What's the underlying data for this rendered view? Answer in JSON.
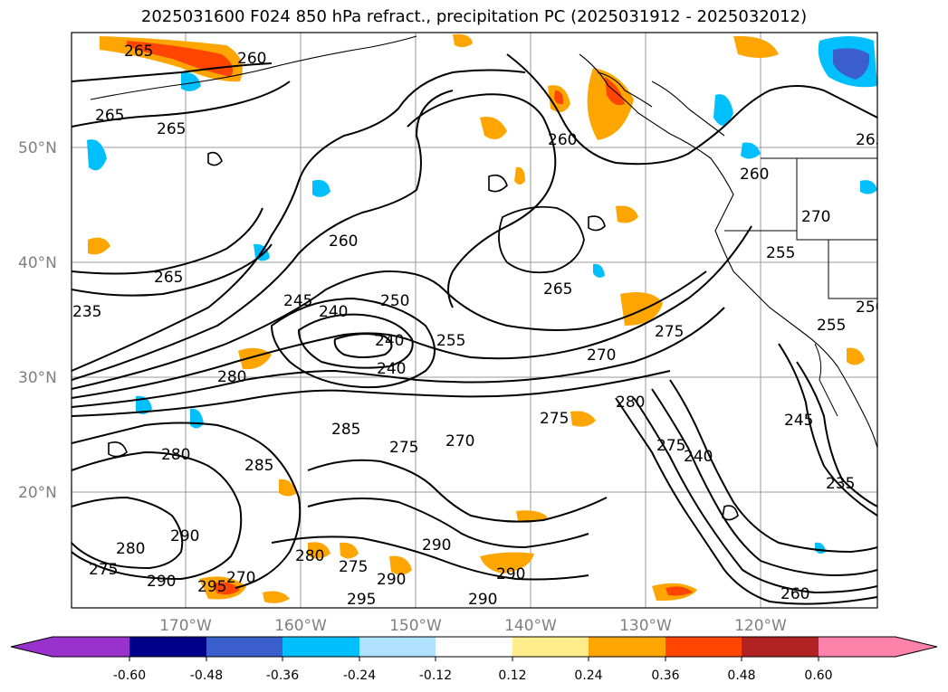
{
  "title": "2025031600 F024 850 hPa refract., precipitation PC (2025031912 - 2025032012)",
  "map": {
    "lat_labels": [
      "50°N",
      "40°N",
      "30°N",
      "20°N"
    ],
    "lon_labels": [
      "170°W",
      "160°W",
      "150°W",
      "140°W",
      "130°W",
      "120°W"
    ],
    "contour_labels": [
      "265",
      "260",
      "265",
      "265",
      "260",
      "265",
      "260",
      "270",
      "265",
      "245",
      "240",
      "250",
      "240",
      "255",
      "240",
      "265",
      "270",
      "275",
      "280",
      "275",
      "270",
      "275",
      "280",
      "285",
      "275",
      "240",
      "260",
      "255",
      "250",
      "255",
      "245",
      "235",
      "290",
      "280",
      "285",
      "295",
      "290",
      "290",
      "290",
      "275",
      "290",
      "270",
      "280",
      "290",
      "280",
      "275",
      "295",
      "260",
      "235"
    ],
    "grid": true,
    "land_color": "#ffffff",
    "ocean_color": "#ffffff"
  },
  "colorbar": {
    "ticks": [
      "-0.60",
      "-0.48",
      "-0.36",
      "-0.24",
      "-0.12",
      "0.12",
      "0.24",
      "0.36",
      "0.48",
      "0.60"
    ],
    "colors": [
      "#9932cc",
      "#00008b",
      "#3a5fcd",
      "#00bfff",
      "#b0e2ff",
      "#ffffff",
      "#ffec8b",
      "#ffa500",
      "#ff4500",
      "#b22222",
      "#ff82ab"
    ]
  }
}
